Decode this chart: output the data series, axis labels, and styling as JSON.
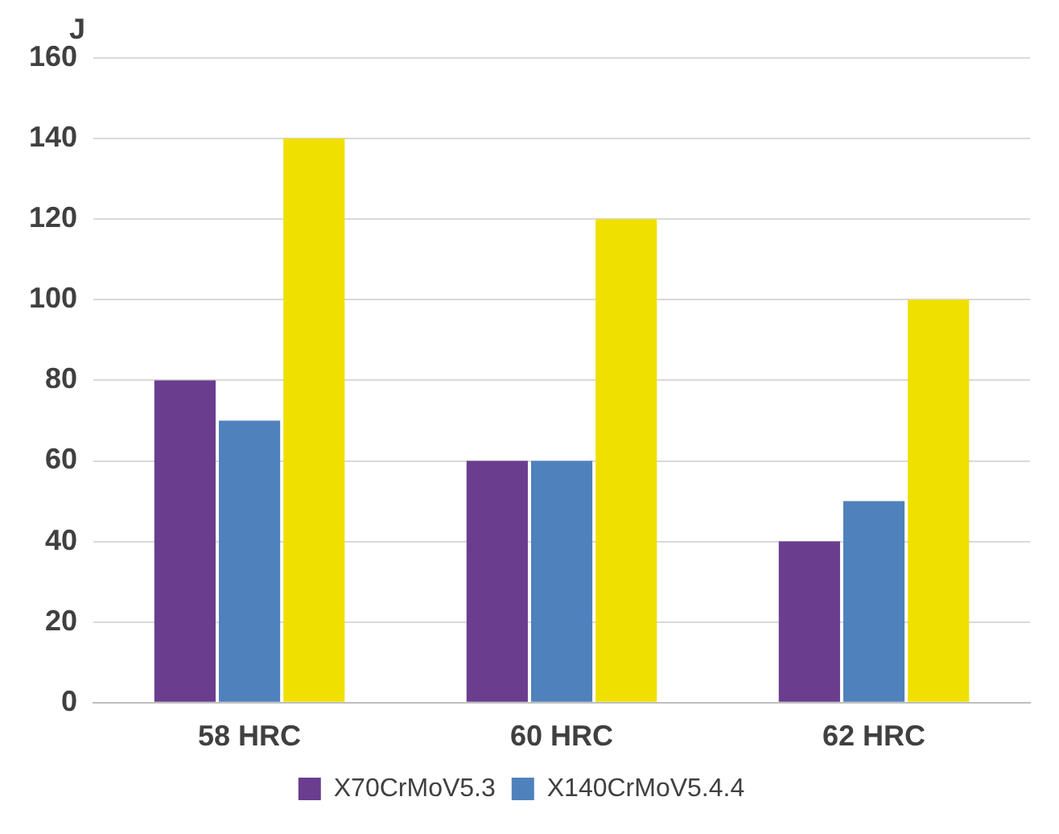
{
  "chart_data": {
    "type": "bar",
    "ylabel": "J",
    "categories": [
      "58 HRC",
      "60 HRC",
      "62 HRC"
    ],
    "series": [
      {
        "name": "X70CrMoV5.3",
        "color": "#6a3d8f",
        "values": [
          80,
          60,
          40
        ]
      },
      {
        "name": "X140CrMoV5.4.4",
        "color": "#4f81bd",
        "values": [
          70,
          60,
          50
        ]
      },
      {
        "color": "#f0e000",
        "values": [
          140,
          120,
          100
        ]
      }
    ],
    "ylim": [
      0,
      160
    ],
    "yticks": [
      0,
      20,
      40,
      60,
      80,
      100,
      120,
      140,
      160
    ],
    "grid": "y",
    "legend": "bottom"
  }
}
